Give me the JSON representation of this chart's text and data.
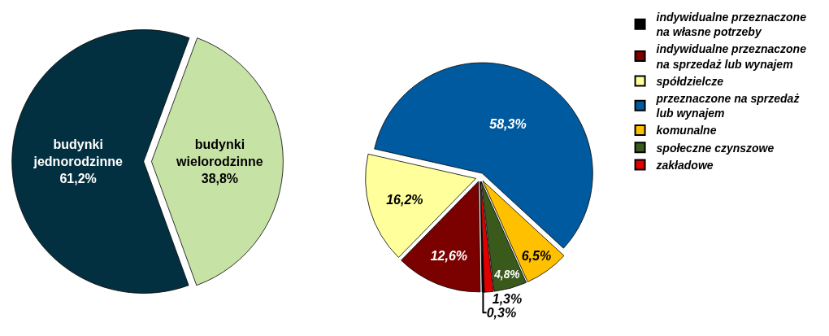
{
  "chart_data": [
    {
      "type": "pie",
      "categories": [
        "budynki jednorodzinne",
        "budynki wielorodzinne"
      ],
      "values": [
        61.2,
        38.8
      ],
      "colors": [
        "#033040",
        "#c6e3a5"
      ],
      "value_labels": [
        "61,2%",
        "38,8%"
      ],
      "legend": false
    },
    {
      "type": "pie",
      "categories": [
        "indywidualne przeznaczone na własne potrzeby",
        "indywidualne przeznaczone na sprzedaż lub wynajem",
        "spółdzielcze",
        "przeznaczone na sprzedaż lub wynajem",
        "komunalne",
        "społeczne czynszowe",
        "zakładowe"
      ],
      "values": [
        0.3,
        12.6,
        16.2,
        58.3,
        6.5,
        4.8,
        1.3
      ],
      "colors": [
        "#000000",
        "#7b0000",
        "#ffff9c",
        "#005aa0",
        "#ffc000",
        "#3a5a1c",
        "#e00000"
      ],
      "value_labels": [
        "0,3%",
        "12,6%",
        "16,2%",
        "58,3%",
        "6,5%",
        "4,8%",
        "1,3%"
      ],
      "legend": "right"
    }
  ]
}
